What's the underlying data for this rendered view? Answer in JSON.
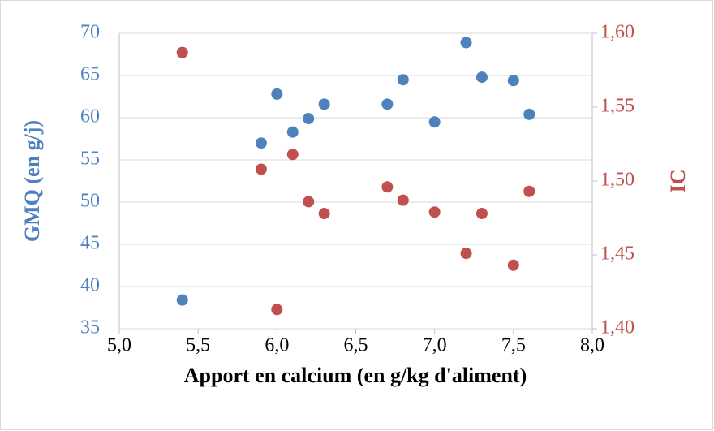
{
  "chart_data": {
    "type": "scatter",
    "xlabel": "Apport en calcium (en g/kg d'aliment)",
    "ylabel": "GMQ (en g/j)",
    "y2label": "IC",
    "x": [
      5.4,
      5.9,
      6.0,
      6.1,
      6.2,
      6.3,
      6.7,
      6.8,
      7.0,
      7.2,
      7.3,
      7.5,
      7.6
    ],
    "series": [
      {
        "color": "#4f81bd",
        "values": [
          38.4,
          57.0,
          62.8,
          58.3,
          59.9,
          61.6,
          61.6,
          64.5,
          59.5,
          68.9,
          64.8,
          64.4,
          60.4
        ]
      },
      {
        "color": "#c0504d",
        "axis": "y2",
        "values": [
          1.587,
          1.508,
          1.413,
          1.518,
          1.486,
          1.478,
          1.496,
          1.487,
          1.479,
          1.451,
          1.478,
          1.443,
          1.493
        ]
      }
    ],
    "xlim": [
      5.0,
      8.0
    ],
    "xticks": [
      {
        "value": 5.0,
        "label": "5,0"
      },
      {
        "value": 5.5,
        "label": "5,5"
      },
      {
        "value": 6.0,
        "label": "6,0"
      },
      {
        "value": 6.5,
        "label": "6,5"
      },
      {
        "value": 7.0,
        "label": "7,0"
      },
      {
        "value": 7.5,
        "label": "7,5"
      },
      {
        "value": 8.0,
        "label": "8,0"
      }
    ],
    "ylim": [
      35,
      70
    ],
    "yticks": [
      35,
      40,
      45,
      50,
      55,
      60,
      65,
      70
    ],
    "y2lim": [
      1.4,
      1.6
    ],
    "y2ticks": [
      {
        "value": 1.4,
        "label": "1,40"
      },
      {
        "value": 1.45,
        "label": "1,45"
      },
      {
        "value": 1.5,
        "label": "1,50"
      },
      {
        "value": 1.55,
        "label": "1,55"
      },
      {
        "value": 1.6,
        "label": "1,60"
      }
    ],
    "grid": true
  }
}
